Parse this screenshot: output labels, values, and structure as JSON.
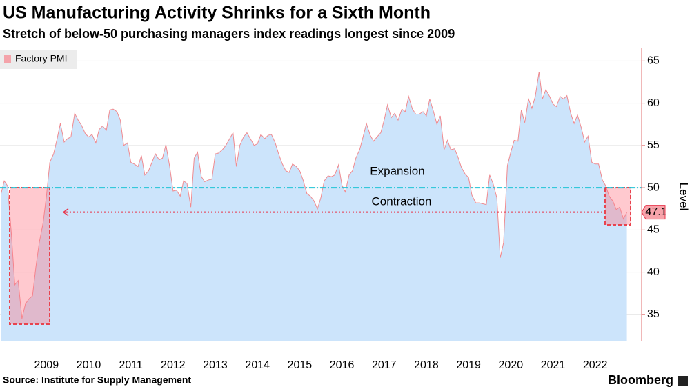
{
  "chart_data": {
    "type": "area",
    "title": "US Manufacturing Activity Shrinks for a Sixth Month",
    "subtitle": "Stretch of below-50 purchasing managers index readings longest since 2009",
    "y_label": "Level",
    "source": "Source: Institute for Supply Management",
    "brand": "Bloomberg",
    "annotations": [
      "Expansion",
      "Contraction"
    ],
    "threshold": 50,
    "x": [
      2008.42,
      2008.5,
      2008.58,
      2008.67,
      2008.75,
      2008.83,
      2008.92,
      2009.0,
      2009.08,
      2009.17,
      2009.25,
      2009.33,
      2009.42,
      2009.5,
      2009.58,
      2009.67,
      2009.75,
      2009.83,
      2009.92,
      2010.0,
      2010.08,
      2010.17,
      2010.25,
      2010.33,
      2010.42,
      2010.5,
      2010.58,
      2010.67,
      2010.75,
      2010.83,
      2010.92,
      2011.0,
      2011.08,
      2011.17,
      2011.25,
      2011.33,
      2011.42,
      2011.5,
      2011.58,
      2011.67,
      2011.75,
      2011.83,
      2011.92,
      2012.0,
      2012.08,
      2012.17,
      2012.25,
      2012.33,
      2012.42,
      2012.5,
      2012.58,
      2012.67,
      2012.75,
      2012.83,
      2012.92,
      2013.0,
      2013.08,
      2013.17,
      2013.25,
      2013.33,
      2013.42,
      2013.5,
      2013.58,
      2013.67,
      2013.75,
      2013.83,
      2013.92,
      2014.0,
      2014.08,
      2014.17,
      2014.25,
      2014.33,
      2014.42,
      2014.5,
      2014.58,
      2014.67,
      2014.75,
      2014.83,
      2014.92,
      2015.0,
      2015.08,
      2015.17,
      2015.25,
      2015.33,
      2015.42,
      2015.5,
      2015.58,
      2015.67,
      2015.75,
      2015.83,
      2015.92,
      2016.0,
      2016.08,
      2016.17,
      2016.25,
      2016.33,
      2016.42,
      2016.5,
      2016.58,
      2016.67,
      2016.75,
      2016.83,
      2016.92,
      2017.0,
      2017.08,
      2017.17,
      2017.25,
      2017.33,
      2017.42,
      2017.5,
      2017.58,
      2017.67,
      2017.75,
      2017.83,
      2017.92,
      2018.0,
      2018.08,
      2018.17,
      2018.25,
      2018.33,
      2018.42,
      2018.5,
      2018.58,
      2018.67,
      2018.75,
      2018.83,
      2018.92,
      2019.0,
      2019.08,
      2019.17,
      2019.25,
      2019.33,
      2019.42,
      2019.5,
      2019.58,
      2019.67,
      2019.75,
      2019.83,
      2019.92,
      2020.0,
      2020.08,
      2020.17,
      2020.25,
      2020.33,
      2020.42,
      2020.5,
      2020.58,
      2020.67,
      2020.75,
      2020.83,
      2020.92,
      2021.0,
      2021.08,
      2021.17,
      2021.25,
      2021.33,
      2021.42,
      2021.5,
      2021.58,
      2021.67,
      2021.75,
      2021.83,
      2021.92,
      2022.0,
      2022.08,
      2022.17,
      2022.25,
      2022.33,
      2022.42,
      2022.5,
      2022.58,
      2022.67,
      2022.75,
      2022.83,
      2022.92,
      2023.0,
      2023.08,
      2023.17,
      2023.25
    ],
    "series": [
      {
        "name": "Factory PMI",
        "color": "#f08a8f",
        "fill": "#cce4fb",
        "legend_color": "#f4a3aa",
        "values": [
          49.2,
          50.8,
          50.2,
          44.5,
          38.5,
          39.0,
          34.5,
          36.2,
          36.8,
          37.2,
          40.6,
          43.5,
          45.8,
          49.0,
          53.0,
          54.0,
          55.7,
          57.6,
          55.4,
          55.8,
          56.0,
          58.8,
          58.0,
          57.4,
          56.4,
          56.0,
          56.3,
          55.3,
          56.9,
          57.3,
          56.8,
          59.2,
          59.3,
          59.0,
          58.0,
          55.0,
          55.3,
          53.0,
          52.8,
          52.5,
          53.8,
          51.5,
          52.0,
          53.0,
          54.0,
          53.3,
          53.5,
          55.1,
          52.5,
          49.6,
          49.7,
          49.0,
          50.8,
          50.5,
          47.7,
          53.5,
          54.2,
          51.3,
          50.7,
          50.9,
          51.0,
          54.0,
          54.1,
          54.5,
          55.0,
          55.7,
          56.5,
          52.5,
          55.0,
          56.0,
          56.5,
          55.8,
          55.0,
          55.2,
          56.3,
          55.8,
          56.2,
          56.3,
          55.3,
          54.0,
          52.9,
          52.0,
          51.8,
          52.8,
          52.5,
          52.0,
          50.9,
          49.3,
          49.0,
          48.5,
          47.5,
          48.8,
          50.8,
          51.4,
          51.3,
          51.5,
          52.7,
          50.3,
          49.5,
          51.5,
          52.0,
          53.5,
          54.5,
          56.0,
          57.6,
          56.2,
          55.5,
          56.0,
          56.5,
          58.0,
          59.8,
          58.3,
          58.8,
          58.0,
          59.3,
          59.0,
          60.8,
          59.3,
          58.7,
          58.7,
          59.0,
          58.5,
          60.5,
          59.0,
          57.5,
          58.5,
          54.5,
          55.6,
          54.5,
          54.6,
          53.6,
          52.4,
          51.6,
          51.2,
          49.1,
          48.2,
          48.2,
          48.1,
          48.0,
          51.5,
          50.5,
          48.8,
          41.7,
          43.5,
          52.6,
          54.2,
          55.6,
          55.5,
          59.2,
          57.7,
          60.5,
          59.4,
          60.8,
          63.7,
          60.5,
          61.6,
          60.8,
          59.9,
          59.6,
          60.8,
          60.5,
          60.9,
          58.8,
          57.6,
          58.6,
          57.1,
          55.4,
          56.1,
          53.0,
          52.8,
          52.8,
          50.9,
          50.2,
          49.0,
          48.4,
          47.4,
          47.7,
          46.3,
          47.1
        ]
      }
    ],
    "xlim": [
      2008.4,
      2023.6
    ],
    "xticks": [
      {
        "value": 2009.5,
        "label": "2009"
      },
      {
        "value": 2010.5,
        "label": "2010"
      },
      {
        "value": 2011.5,
        "label": "2011"
      },
      {
        "value": 2012.5,
        "label": "2012"
      },
      {
        "value": 2013.5,
        "label": "2013"
      },
      {
        "value": 2014.5,
        "label": "2014"
      },
      {
        "value": 2015.5,
        "label": "2015"
      },
      {
        "value": 2016.5,
        "label": "2016"
      },
      {
        "value": 2017.5,
        "label": "2017"
      },
      {
        "value": 2018.5,
        "label": "2018"
      },
      {
        "value": 2019.5,
        "label": "2019"
      },
      {
        "value": 2020.5,
        "label": "2020"
      },
      {
        "value": 2021.5,
        "label": "2021"
      },
      {
        "value": 2022.5,
        "label": "2022"
      }
    ],
    "ylim": [
      31.8,
      66.5
    ],
    "yticks": [
      35,
      40,
      45,
      50,
      55,
      60,
      65
    ],
    "grid": true
  }
}
